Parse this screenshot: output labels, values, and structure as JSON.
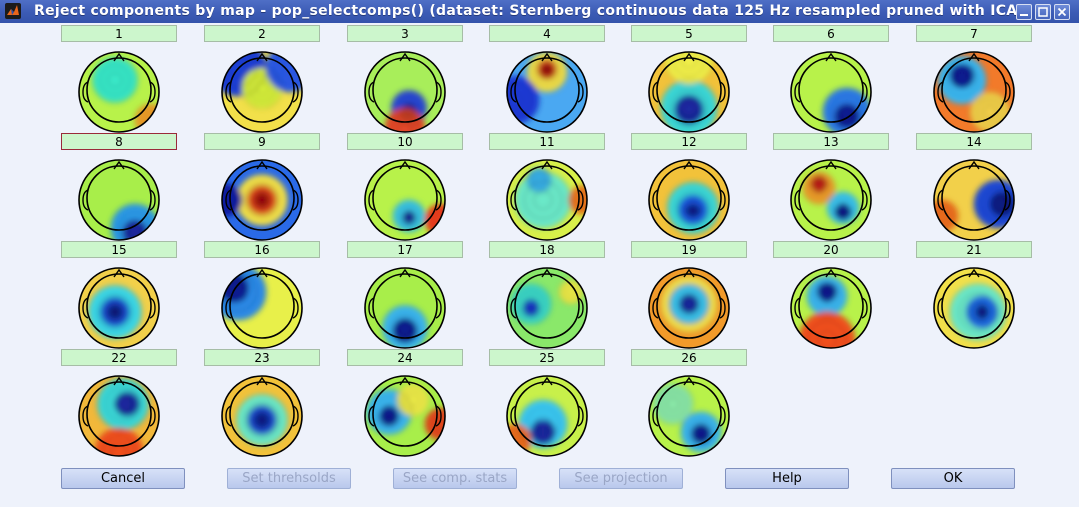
{
  "window": {
    "title": "Reject components by map - pop_selectcomps() (dataset:  Sternberg continuous data 125 Hz resampled pruned with ICA)"
  },
  "components": [
    {
      "label": "1"
    },
    {
      "label": "2"
    },
    {
      "label": "3"
    },
    {
      "label": "4"
    },
    {
      "label": "5"
    },
    {
      "label": "6"
    },
    {
      "label": "7"
    },
    {
      "label": "8"
    },
    {
      "label": "9"
    },
    {
      "label": "10"
    },
    {
      "label": "11"
    },
    {
      "label": "12"
    },
    {
      "label": "13"
    },
    {
      "label": "14"
    },
    {
      "label": "15"
    },
    {
      "label": "16"
    },
    {
      "label": "17"
    },
    {
      "label": "18"
    },
    {
      "label": "19"
    },
    {
      "label": "20"
    },
    {
      "label": "21"
    },
    {
      "label": "22"
    },
    {
      "label": "23"
    },
    {
      "label": "24"
    },
    {
      "label": "25"
    },
    {
      "label": "26"
    }
  ],
  "buttons": {
    "cancel": "Cancel",
    "set_thresholds": "Set threhsolds",
    "see_stats": "See comp. stats",
    "see_projection": "See projection",
    "help": "Help",
    "ok": "OK"
  },
  "colors": {
    "title_bar": "#3c5bb5",
    "comp_button": "#ccf6cc",
    "selected_border": "#9a2a3a"
  }
}
